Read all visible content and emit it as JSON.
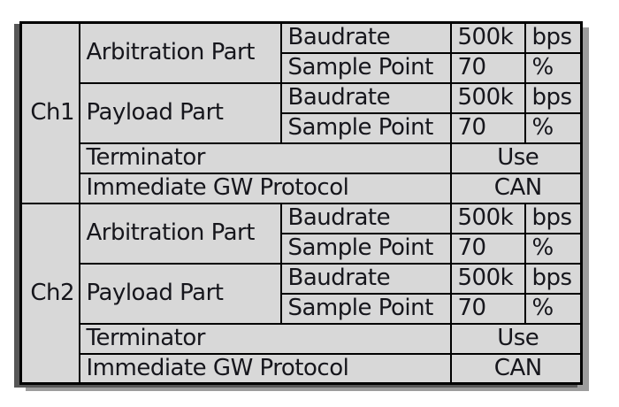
{
  "colors": {
    "label_cell_bg": "#d8d8d8",
    "value_cell_bg": "#ffffff",
    "grid_border": "#000000",
    "text": "#16161c",
    "shadow_left": "#575757",
    "shadow_right": "#9d9d9d"
  },
  "channels": [
    {
      "name": "Ch1",
      "parts": [
        {
          "name": "Arbitration Part",
          "rows": [
            {
              "label": "Baudrate",
              "value": "500k",
              "unit": "bps"
            },
            {
              "label": "Sample Point",
              "value": "70",
              "unit": "%"
            }
          ]
        },
        {
          "name": "Payload Part",
          "rows": [
            {
              "label": "Baudrate",
              "value": "500k",
              "unit": "bps"
            },
            {
              "label": "Sample Point",
              "value": "70",
              "unit": "%"
            }
          ]
        }
      ],
      "terminator": {
        "label": "Terminator",
        "value": "Use"
      },
      "gateway": {
        "label": "Immediate GW Protocol",
        "value": "CAN"
      }
    },
    {
      "name": "Ch2",
      "parts": [
        {
          "name": "Arbitration Part",
          "rows": [
            {
              "label": "Baudrate",
              "value": "500k",
              "unit": "bps"
            },
            {
              "label": "Sample Point",
              "value": "70",
              "unit": "%"
            }
          ]
        },
        {
          "name": "Payload Part",
          "rows": [
            {
              "label": "Baudrate",
              "value": "500k",
              "unit": "bps"
            },
            {
              "label": "Sample Point",
              "value": "70",
              "unit": "%"
            }
          ]
        }
      ],
      "terminator": {
        "label": "Terminator",
        "value": "Use"
      },
      "gateway": {
        "label": "Immediate GW Protocol",
        "value": "CAN"
      }
    }
  ]
}
